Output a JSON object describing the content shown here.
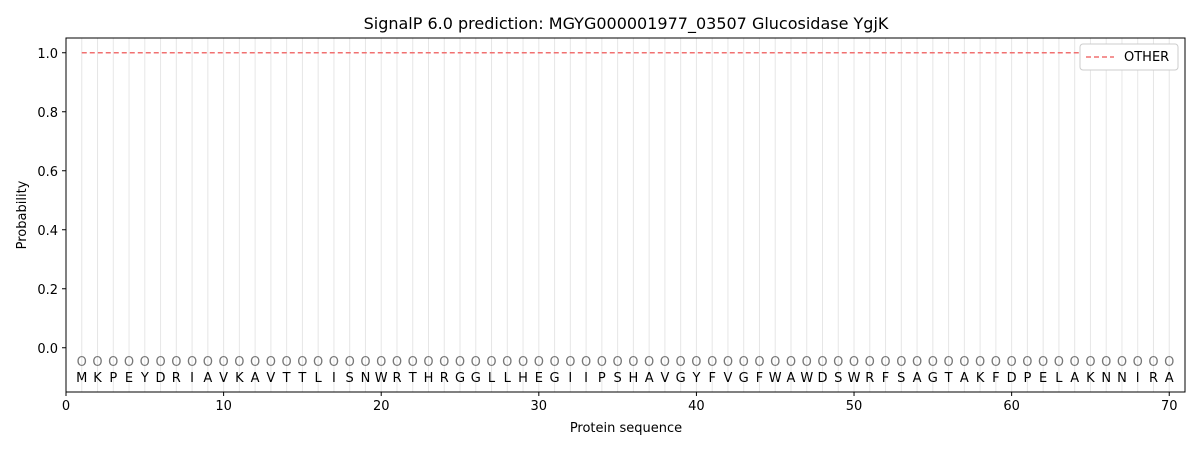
{
  "chart_data": {
    "type": "line",
    "title": "SignalP 6.0 prediction: MGYG000001977_03507 Glucosidase YgjK",
    "xlabel": "Protein sequence",
    "ylabel": "Probability",
    "xlim": [
      0,
      71
    ],
    "ylim": [
      -0.15,
      1.05
    ],
    "xticks": [
      0,
      10,
      20,
      30,
      40,
      50,
      60,
      70
    ],
    "yticks": [
      0.0,
      0.2,
      0.4,
      0.6,
      0.8,
      1.0
    ],
    "ytick_labels": [
      "0.0",
      "0.2",
      "0.4",
      "0.6",
      "0.8",
      "1.0"
    ],
    "grid": "vertical lines at each residue",
    "legend_position": "top-right",
    "sequence": [
      "M",
      "K",
      "P",
      "E",
      "Y",
      "D",
      "R",
      "I",
      "A",
      "V",
      "K",
      "A",
      "V",
      "T",
      "T",
      "L",
      "I",
      "S",
      "N",
      "W",
      "R",
      "T",
      "H",
      "R",
      "G",
      "G",
      "L",
      "L",
      "H",
      "E",
      "G",
      "I",
      "I",
      "P",
      "S",
      "H",
      "A",
      "V",
      "G",
      "Y",
      "F",
      "V",
      "G",
      "F",
      "W",
      "A",
      "W",
      "D",
      "S",
      "W",
      "R",
      "F",
      "S",
      "A",
      "G",
      "T",
      "A",
      "K",
      "F",
      "D",
      "P",
      "E",
      "L",
      "A",
      "K",
      "N",
      "N",
      "I",
      "R",
      "A"
    ],
    "predicted_labels": "O",
    "series": [
      {
        "name": "OTHER",
        "color": "#f07070",
        "style": "dashed",
        "x_range": [
          1,
          70
        ],
        "value": 1.0
      }
    ]
  }
}
